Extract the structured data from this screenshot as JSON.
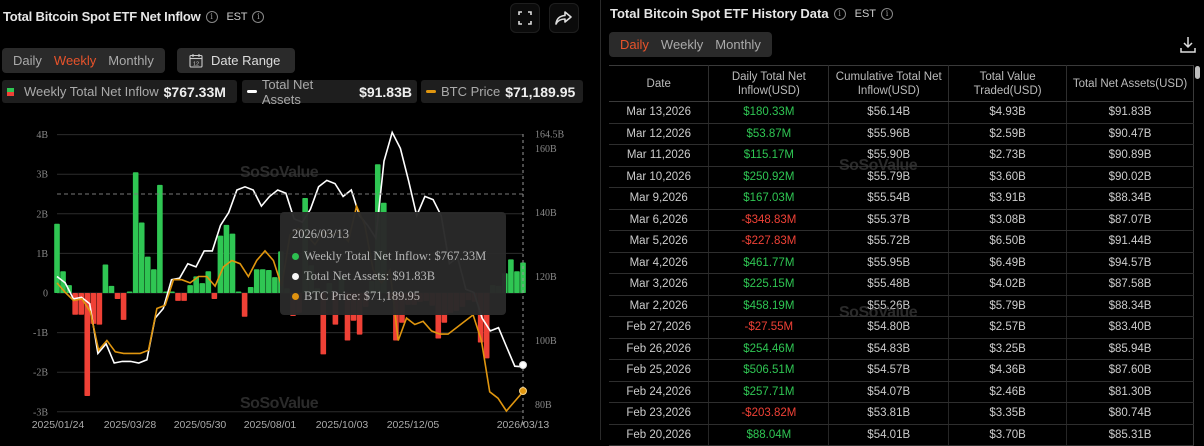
{
  "left_panel": {
    "title": "Total Bitcoin Spot ETF Net Inflow",
    "timezone": "EST",
    "period_tabs": [
      {
        "label": "Daily",
        "active": false
      },
      {
        "label": "Weekly",
        "active": true
      },
      {
        "label": "Monthly",
        "active": false
      }
    ],
    "date_range_label": "Date Range",
    "calendar_day": "12",
    "legend": [
      {
        "label": "Weekly Total Net Inflow",
        "value": "$767.33M"
      },
      {
        "label": "Total Net Assets",
        "value": "$91.83B"
      },
      {
        "label": "BTC Price",
        "value": "$71,189.95"
      }
    ],
    "tooltip": {
      "date": "2026/03/13",
      "rows": [
        {
          "label": "Weekly Total Net Inflow: $767.33M",
          "color": "#2fc653"
        },
        {
          "label": "Total Net Assets: $91.83B",
          "color": "#ffffff"
        },
        {
          "label": "BTC Price: $71,189.95",
          "color": "#e0960f"
        }
      ]
    },
    "watermark": "SoSoValue"
  },
  "chart_data": {
    "type": "bar",
    "title": "Total Bitcoin Spot ETF Net Inflow",
    "x_tick_labels": [
      "2025/01/24",
      "2025/03/28",
      "2025/05/30",
      "2025/08/01",
      "2025/10/03",
      "2025/12/05",
      "2026/03/13"
    ],
    "y_left_ticks": [
      "4B",
      "3B",
      "2B",
      "1B",
      "0",
      "-1B",
      "-2B",
      "-3B"
    ],
    "y_right_ticks": [
      "164.5B",
      "160B",
      "140B",
      "120B",
      "100B",
      "80B"
    ],
    "ylim_left": [
      -3,
      4
    ],
    "ylim_right": [
      78,
      164.5
    ],
    "series": [
      {
        "name": "Weekly Total Net Inflow (B)",
        "type": "bar",
        "values": [
          1.75,
          0.55,
          0.2,
          -0.55,
          -0.55,
          -2.6,
          -0.78,
          -0.8,
          0.72,
          0.18,
          -0.15,
          -0.68,
          0.02,
          3.05,
          1.78,
          0.92,
          0.6,
          2.73,
          0,
          0,
          -0.2,
          -0.2,
          0.2,
          0.42,
          0.25,
          0.55,
          -0.15,
          1.45,
          1.72,
          1.5,
          0.02,
          -0.6,
          0.15,
          0.6,
          0.6,
          0.58,
          0.4,
          1.05,
          0.12,
          -0.58,
          -0.5,
          2.4,
          0.7,
          0.12,
          -1.55,
          0.25,
          -0.8,
          0.4,
          -1.2,
          -0.7,
          -1.05,
          -0.35,
          0.3,
          3.25,
          2.28,
          -0.15,
          -1.2,
          -0.75,
          -0.3,
          -0.3,
          -0.22,
          -0.2,
          -0.32,
          -1.15,
          -0.75,
          -0.5,
          -0.45,
          -0.35,
          -0.18,
          -0.22,
          -1.25,
          -1.65,
          0.2,
          0.18,
          0.5,
          0.85,
          0.55,
          0.77
        ]
      },
      {
        "name": "Total Net Assets (B)",
        "type": "line",
        "values": [
          120,
          118,
          113,
          113.5,
          111.5,
          96,
          99,
          93,
          93.5,
          93.5,
          93,
          94,
          107,
          110,
          119,
          119.5,
          124,
          123,
          128,
          128,
          136,
          140,
          147,
          148,
          147,
          142,
          145,
          147,
          146,
          138,
          137,
          141,
          148,
          150,
          149,
          145,
          147,
          139,
          136,
          132,
          156,
          165,
          160,
          150,
          139,
          145,
          144,
          139,
          124,
          126,
          116,
          115,
          107,
          103,
          104,
          98,
          92,
          91.8
        ]
      },
      {
        "name": "BTC Price (scaled)",
        "type": "line",
        "values": [
          118,
          115,
          112.5,
          113,
          109,
          97,
          100,
          96.5,
          96,
          96,
          96,
          97,
          110,
          111,
          119,
          119,
          118,
          120,
          120,
          117,
          123,
          125,
          124,
          120,
          125,
          128,
          125,
          117,
          133,
          135,
          133,
          130,
          134,
          133,
          134,
          131,
          142,
          136,
          122,
          118,
          122,
          100,
          107,
          105,
          106,
          103,
          102,
          102,
          104,
          106,
          108,
          100,
          84,
          82,
          78,
          81,
          84
        ]
      }
    ]
  },
  "right_panel": {
    "title": "Total Bitcoin Spot ETF History Data",
    "timezone": "EST",
    "period_tabs": [
      {
        "label": "Daily",
        "active": true
      },
      {
        "label": "Weekly",
        "active": false
      },
      {
        "label": "Monthly",
        "active": false
      }
    ],
    "table": {
      "columns": [
        "Date",
        "Daily Total Net Inflow(USD)",
        "Cumulative Total Net Inflow(USD)",
        "Total Value Traded(USD)",
        "Total Net Assets(USD)"
      ],
      "column_lines": [
        [
          "Date"
        ],
        [
          "Daily Total Net",
          "Inflow(USD)"
        ],
        [
          "Cumulative Total Net",
          "Inflow(USD)"
        ],
        [
          "Total Value",
          "Traded(USD)"
        ],
        [
          "Total Net Assets(USD)"
        ]
      ],
      "rows": [
        {
          "date": "Mar 13,2026",
          "inflow": "$180.33M",
          "cumulative": "$56.14B",
          "traded": "$4.93B",
          "assets": "$91.83B"
        },
        {
          "date": "Mar 12,2026",
          "inflow": "$53.87M",
          "cumulative": "$55.96B",
          "traded": "$2.59B",
          "assets": "$90.47B"
        },
        {
          "date": "Mar 11,2026",
          "inflow": "$115.17M",
          "cumulative": "$55.90B",
          "traded": "$2.73B",
          "assets": "$90.89B"
        },
        {
          "date": "Mar 10,2026",
          "inflow": "$250.92M",
          "cumulative": "$55.79B",
          "traded": "$3.60B",
          "assets": "$90.02B"
        },
        {
          "date": "Mar 9,2026",
          "inflow": "$167.03M",
          "cumulative": "$55.54B",
          "traded": "$3.91B",
          "assets": "$88.34B"
        },
        {
          "date": "Mar 6,2026",
          "inflow": "-$348.83M",
          "cumulative": "$55.37B",
          "traded": "$3.08B",
          "assets": "$87.07B"
        },
        {
          "date": "Mar 5,2026",
          "inflow": "-$227.83M",
          "cumulative": "$55.72B",
          "traded": "$6.50B",
          "assets": "$91.44B"
        },
        {
          "date": "Mar 4,2026",
          "inflow": "$461.77M",
          "cumulative": "$55.95B",
          "traded": "$6.49B",
          "assets": "$94.57B"
        },
        {
          "date": "Mar 3,2026",
          "inflow": "$225.15M",
          "cumulative": "$55.48B",
          "traded": "$4.02B",
          "assets": "$87.58B"
        },
        {
          "date": "Mar 2,2026",
          "inflow": "$458.19M",
          "cumulative": "$55.26B",
          "traded": "$5.79B",
          "assets": "$88.34B"
        },
        {
          "date": "Feb 27,2026",
          "inflow": "-$27.55M",
          "cumulative": "$54.80B",
          "traded": "$2.57B",
          "assets": "$83.40B"
        },
        {
          "date": "Feb 26,2026",
          "inflow": "$254.46M",
          "cumulative": "$54.83B",
          "traded": "$3.25B",
          "assets": "$85.94B"
        },
        {
          "date": "Feb 25,2026",
          "inflow": "$506.51M",
          "cumulative": "$54.57B",
          "traded": "$4.36B",
          "assets": "$87.60B"
        },
        {
          "date": "Feb 24,2026",
          "inflow": "$257.71M",
          "cumulative": "$54.07B",
          "traded": "$2.46B",
          "assets": "$81.30B"
        },
        {
          "date": "Feb 23,2026",
          "inflow": "-$203.82M",
          "cumulative": "$53.81B",
          "traded": "$3.35B",
          "assets": "$80.74B"
        },
        {
          "date": "Feb 20,2026",
          "inflow": "$88.04M",
          "cumulative": "$54.01B",
          "traded": "$3.70B",
          "assets": "$85.31B"
        }
      ]
    },
    "watermark": "SoSoValue"
  },
  "colors": {
    "positive": "#2fc653",
    "negative": "#ef4136",
    "accent": "#e8532b",
    "btc_line": "#e0960f",
    "assets_line": "#ffffff",
    "panel_bg": "#2a2a2a"
  }
}
